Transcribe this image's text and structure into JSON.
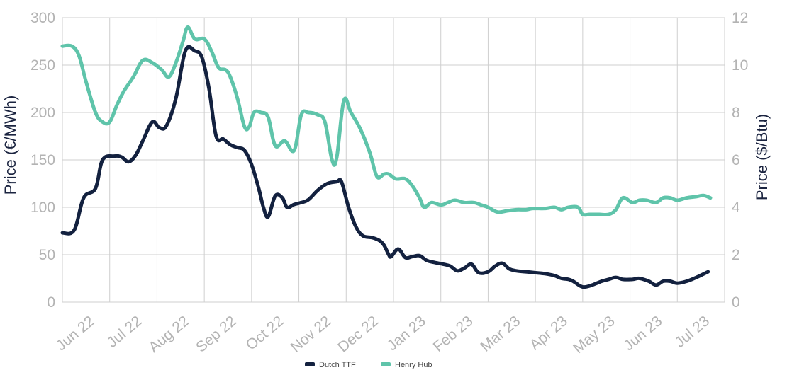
{
  "chart_data": {
    "type": "line",
    "x_categories": [
      "Jun 22",
      "Jul 22",
      "Aug 22",
      "Sep 22",
      "Oct 22",
      "Nov 22",
      "Dec 22",
      "Jan 23",
      "Feb 23",
      "Mar 23",
      "Apr 23",
      "May 23",
      "Jun 23",
      "Jul 23"
    ],
    "y_left": {
      "label": "Price (€/MWh)",
      "min": 0,
      "max": 300,
      "ticks": [
        0,
        50,
        100,
        150,
        200,
        250,
        300
      ]
    },
    "y_right": {
      "label": "Price ($/Btu)",
      "min": 0,
      "max": 12,
      "ticks": [
        0,
        2,
        4,
        6,
        8,
        10,
        12
      ]
    },
    "grid": true,
    "legend": {
      "position": "bottom-center"
    },
    "series": [
      {
        "name": "Dutch TTF",
        "axis": "left",
        "color": "#13213f",
        "points": [
          [
            0.0,
            73
          ],
          [
            0.25,
            76
          ],
          [
            0.45,
            110
          ],
          [
            0.7,
            120
          ],
          [
            0.85,
            150
          ],
          [
            1.1,
            154
          ],
          [
            1.25,
            153
          ],
          [
            1.4,
            148
          ],
          [
            1.55,
            155
          ],
          [
            1.7,
            170
          ],
          [
            1.9,
            190
          ],
          [
            2.05,
            184
          ],
          [
            2.2,
            186
          ],
          [
            2.4,
            215
          ],
          [
            2.6,
            265
          ],
          [
            2.8,
            265
          ],
          [
            2.95,
            258
          ],
          [
            3.1,
            225
          ],
          [
            3.25,
            175
          ],
          [
            3.4,
            172
          ],
          [
            3.55,
            166
          ],
          [
            3.7,
            163
          ],
          [
            3.85,
            160
          ],
          [
            4.0,
            145
          ],
          [
            4.15,
            120
          ],
          [
            4.25,
            100
          ],
          [
            4.35,
            90
          ],
          [
            4.5,
            112
          ],
          [
            4.65,
            110
          ],
          [
            4.75,
            100
          ],
          [
            4.9,
            103
          ],
          [
            5.05,
            105
          ],
          [
            5.2,
            108
          ],
          [
            5.4,
            118
          ],
          [
            5.6,
            125
          ],
          [
            5.8,
            127
          ],
          [
            5.9,
            127
          ],
          [
            6.05,
            100
          ],
          [
            6.2,
            80
          ],
          [
            6.35,
            70
          ],
          [
            6.55,
            68
          ],
          [
            6.7,
            65
          ],
          [
            6.8,
            60
          ],
          [
            6.9,
            50
          ],
          [
            6.95,
            48
          ],
          [
            7.1,
            56
          ],
          [
            7.25,
            47
          ],
          [
            7.4,
            48
          ],
          [
            7.55,
            49
          ],
          [
            7.7,
            44
          ],
          [
            7.85,
            42
          ],
          [
            8.05,
            40
          ],
          [
            8.2,
            38
          ],
          [
            8.35,
            33
          ],
          [
            8.5,
            36
          ],
          [
            8.65,
            40
          ],
          [
            8.8,
            31
          ],
          [
            9.0,
            32
          ],
          [
            9.15,
            38
          ],
          [
            9.3,
            41
          ],
          [
            9.45,
            35
          ],
          [
            9.6,
            33
          ],
          [
            9.8,
            32
          ],
          [
            10.0,
            31
          ],
          [
            10.2,
            30
          ],
          [
            10.4,
            28
          ],
          [
            10.55,
            25
          ],
          [
            10.7,
            24
          ],
          [
            10.8,
            22
          ],
          [
            10.95,
            17
          ],
          [
            11.05,
            16
          ],
          [
            11.2,
            18
          ],
          [
            11.4,
            22
          ],
          [
            11.55,
            24
          ],
          [
            11.7,
            26
          ],
          [
            11.85,
            24
          ],
          [
            12.05,
            24
          ],
          [
            12.2,
            25
          ],
          [
            12.4,
            22
          ],
          [
            12.55,
            18
          ],
          [
            12.7,
            22
          ],
          [
            12.85,
            22
          ],
          [
            13.0,
            20
          ],
          [
            13.2,
            22
          ],
          [
            13.4,
            26
          ],
          [
            13.65,
            32
          ]
        ]
      },
      {
        "name": "Henry Hub",
        "axis": "right",
        "color": "#5fc4aa",
        "points": [
          [
            0.0,
            10.8
          ],
          [
            0.2,
            10.8
          ],
          [
            0.35,
            10.4
          ],
          [
            0.5,
            9.3
          ],
          [
            0.7,
            8.0
          ],
          [
            0.85,
            7.6
          ],
          [
            1.0,
            7.6
          ],
          [
            1.15,
            8.3
          ],
          [
            1.3,
            8.9
          ],
          [
            1.5,
            9.5
          ],
          [
            1.7,
            10.2
          ],
          [
            1.9,
            10.1
          ],
          [
            2.1,
            9.8
          ],
          [
            2.25,
            9.5
          ],
          [
            2.4,
            10.1
          ],
          [
            2.55,
            11.0
          ],
          [
            2.65,
            11.6
          ],
          [
            2.8,
            11.1
          ],
          [
            3.0,
            11.1
          ],
          [
            3.15,
            10.6
          ],
          [
            3.3,
            9.9
          ],
          [
            3.45,
            9.8
          ],
          [
            3.55,
            9.5
          ],
          [
            3.7,
            8.6
          ],
          [
            3.85,
            7.4
          ],
          [
            3.95,
            7.4
          ],
          [
            4.05,
            8.0
          ],
          [
            4.2,
            8.0
          ],
          [
            4.35,
            7.8
          ],
          [
            4.5,
            6.6
          ],
          [
            4.7,
            6.8
          ],
          [
            4.9,
            6.4
          ],
          [
            5.05,
            7.9
          ],
          [
            5.2,
            8.0
          ],
          [
            5.4,
            7.9
          ],
          [
            5.55,
            7.6
          ],
          [
            5.7,
            6.0
          ],
          [
            5.8,
            6.1
          ],
          [
            5.95,
            8.5
          ],
          [
            6.1,
            8.0
          ],
          [
            6.3,
            7.3
          ],
          [
            6.5,
            6.3
          ],
          [
            6.65,
            5.3
          ],
          [
            6.8,
            5.4
          ],
          [
            6.9,
            5.4
          ],
          [
            7.05,
            5.2
          ],
          [
            7.25,
            5.2
          ],
          [
            7.4,
            4.9
          ],
          [
            7.55,
            4.4
          ],
          [
            7.65,
            4.0
          ],
          [
            7.8,
            4.2
          ],
          [
            8.0,
            4.1
          ],
          [
            8.15,
            4.2
          ],
          [
            8.3,
            4.3
          ],
          [
            8.5,
            4.2
          ],
          [
            8.7,
            4.2
          ],
          [
            8.85,
            4.1
          ],
          [
            9.0,
            4.0
          ],
          [
            9.2,
            3.8
          ],
          [
            9.4,
            3.85
          ],
          [
            9.6,
            3.9
          ],
          [
            9.8,
            3.9
          ],
          [
            9.95,
            3.95
          ],
          [
            10.2,
            3.95
          ],
          [
            10.4,
            4.0
          ],
          [
            10.55,
            3.9
          ],
          [
            10.7,
            4.0
          ],
          [
            10.9,
            4.0
          ],
          [
            11.0,
            3.7
          ],
          [
            11.15,
            3.7
          ],
          [
            11.35,
            3.7
          ],
          [
            11.55,
            3.7
          ],
          [
            11.7,
            3.9
          ],
          [
            11.85,
            4.4
          ],
          [
            12.05,
            4.2
          ],
          [
            12.2,
            4.3
          ],
          [
            12.35,
            4.3
          ],
          [
            12.55,
            4.2
          ],
          [
            12.7,
            4.4
          ],
          [
            12.85,
            4.4
          ],
          [
            13.0,
            4.3
          ],
          [
            13.2,
            4.4
          ],
          [
            13.4,
            4.45
          ],
          [
            13.55,
            4.5
          ],
          [
            13.7,
            4.4
          ]
        ]
      }
    ]
  }
}
